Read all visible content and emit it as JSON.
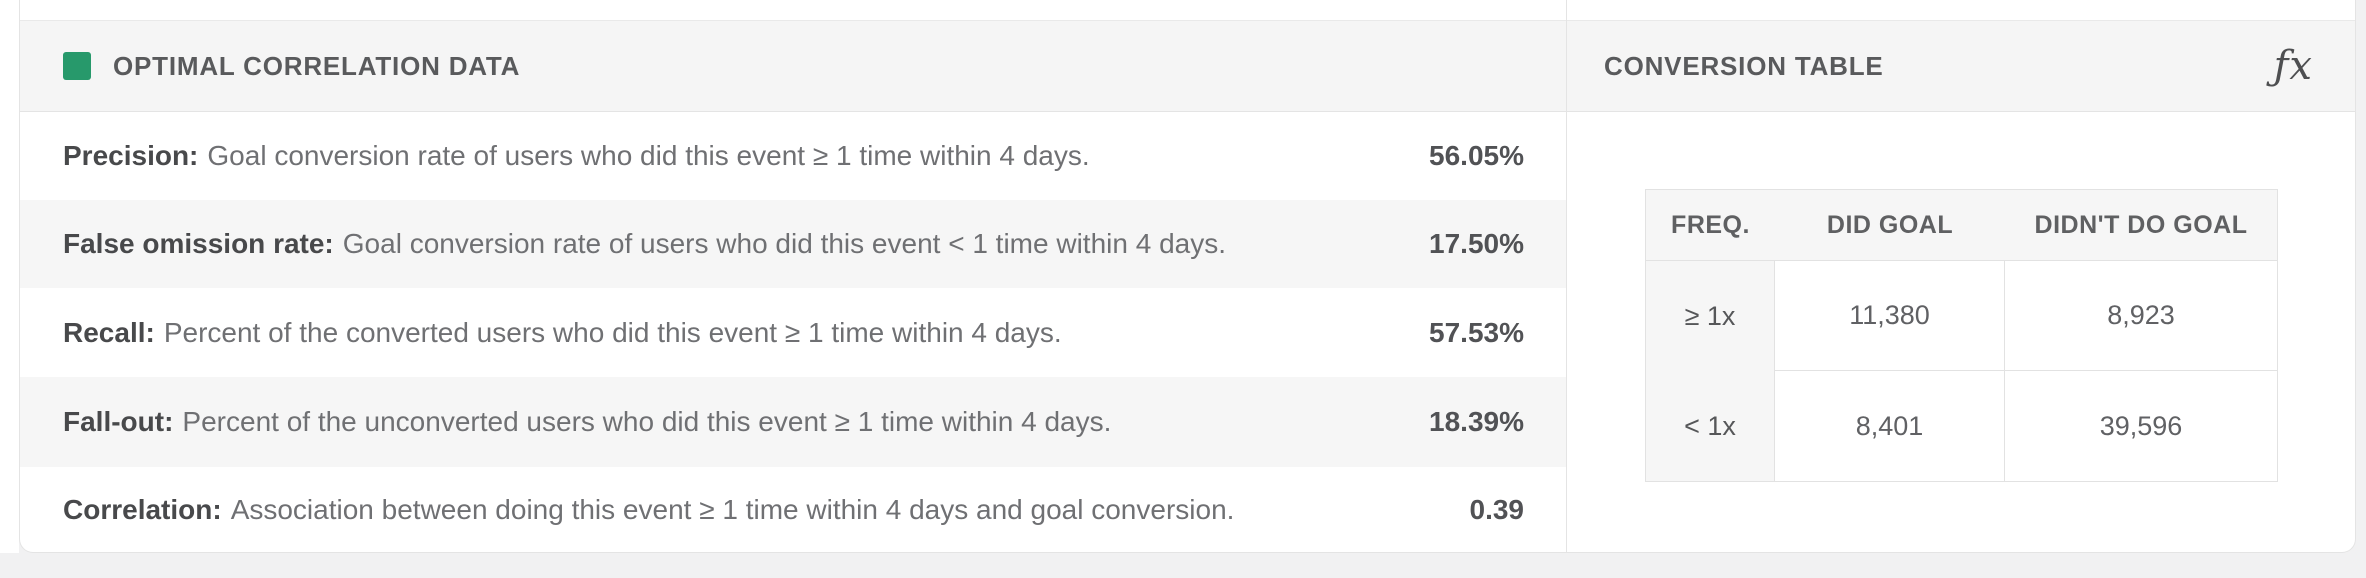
{
  "accent_color": "#27996B",
  "page_background": "#f1f1f2",
  "left_panel": {
    "title": "OPTIMAL CORRELATION DATA",
    "rows": [
      {
        "term": "Precision:",
        "description": "Goal conversion rate of users who did this event ≥ 1 time within 4 days.",
        "value": "56.05%"
      },
      {
        "term": "False omission rate:",
        "description": "Goal conversion rate of users who did this event < 1 time within 4 days.",
        "value": "17.50%"
      },
      {
        "term": "Recall:",
        "description": "Percent of the converted users who did this event ≥ 1 time within 4 days.",
        "value": "57.53%"
      },
      {
        "term": "Fall-out:",
        "description": "Percent of the unconverted users who did this event ≥ 1 time within 4 days.",
        "value": "18.39%"
      },
      {
        "term": "Correlation:",
        "description": "Association between doing this event ≥ 1 time within 4 days and goal conversion.",
        "value": "0.39"
      }
    ]
  },
  "right_panel": {
    "title": "CONVERSION TABLE",
    "formula_icon": "ƒx",
    "table": {
      "headers": [
        "FREQ.",
        "DID GOAL",
        "DIDN'T DO GOAL"
      ],
      "rows": [
        {
          "freq": "≥ 1x",
          "did_goal": "11,380",
          "didnt_do_goal": "8,923"
        },
        {
          "freq": "< 1x",
          "did_goal": "8,401",
          "didnt_do_goal": "39,596"
        }
      ]
    }
  }
}
